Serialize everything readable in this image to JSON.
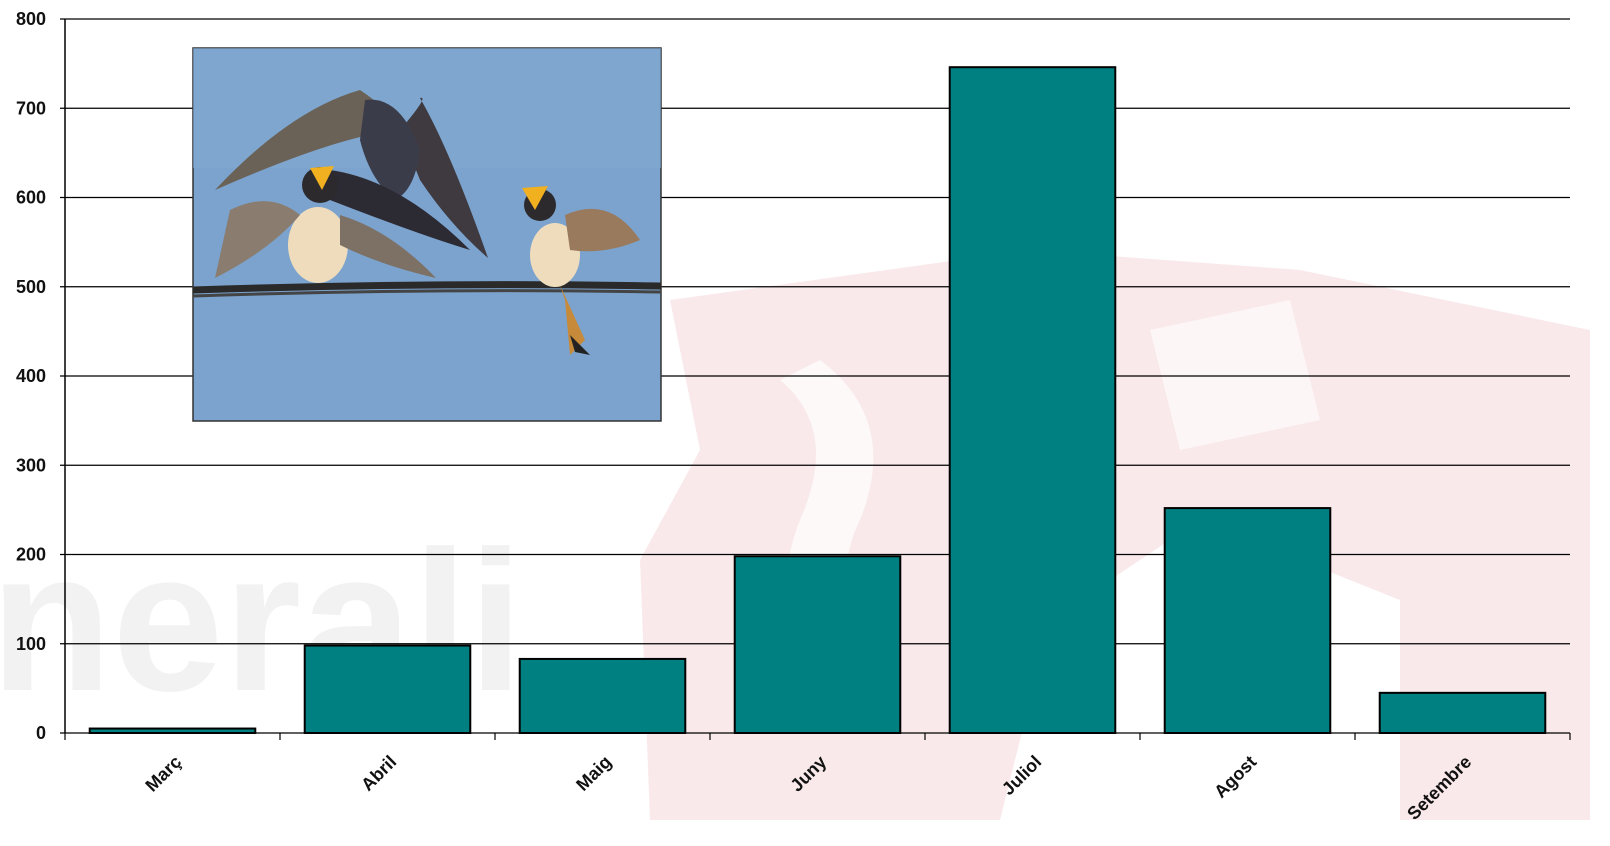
{
  "colors": {
    "bar": "#008080",
    "bar_stroke": "#000000",
    "grid": "#000000",
    "watermark": "#f3d3d6",
    "sky": "#7ba3cd"
  },
  "chart_data": {
    "type": "bar",
    "categories": [
      "Març",
      "Abril",
      "Maig",
      "Juny",
      "Juliol",
      "Agost",
      "Setembre"
    ],
    "values": [
      5,
      98,
      83,
      198,
      746,
      252,
      45
    ],
    "ylim": [
      0,
      800
    ],
    "yticks": [
      "0",
      "100",
      "200",
      "300",
      "400",
      "500",
      "600",
      "700",
      "800"
    ],
    "grid": true,
    "legend": false,
    "inset_image": "barn-swallows-on-wire-photo"
  }
}
